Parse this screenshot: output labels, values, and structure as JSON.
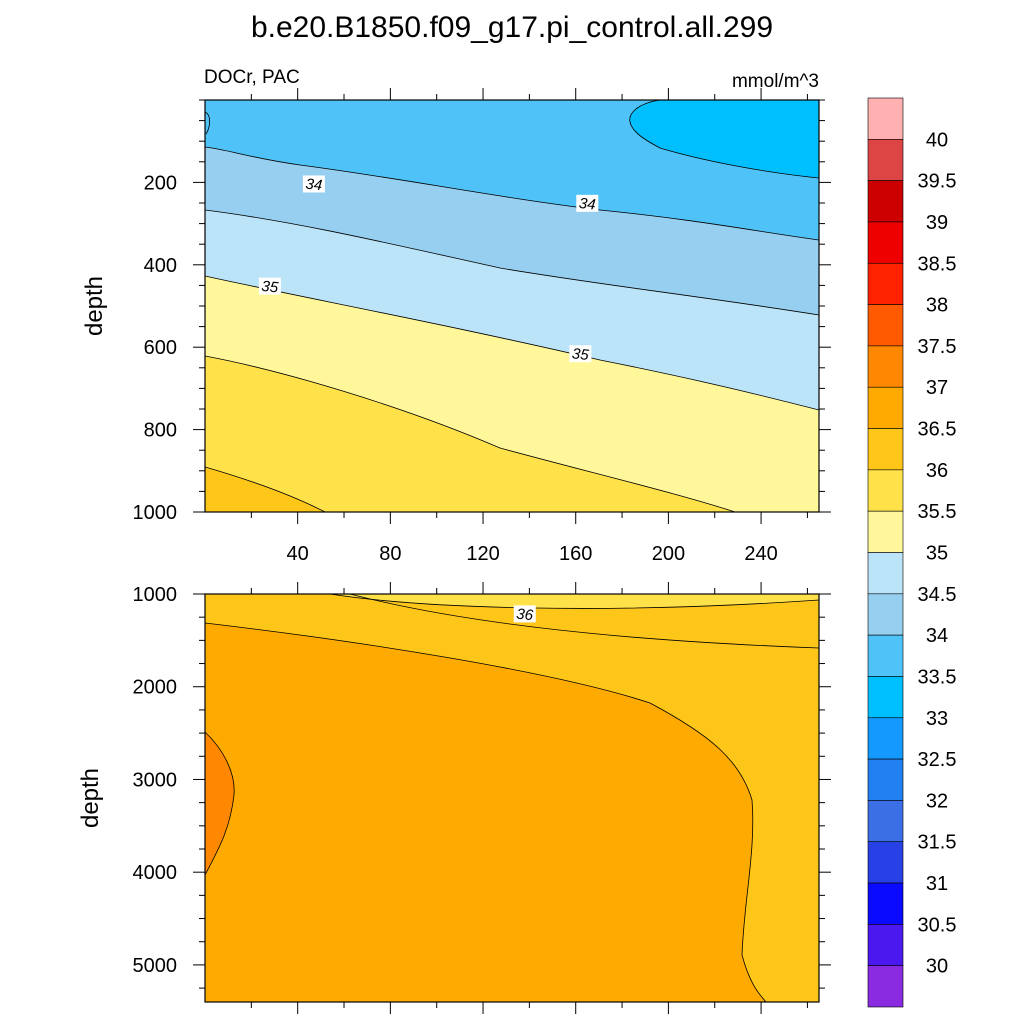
{
  "title": "b.e20.B1850.f09_g17.pi_control.all.299",
  "chart_data": {
    "type": "contour",
    "variable": "DOCr",
    "basin": "PAC",
    "left_label": "DOCr, PAC",
    "units": "mmol/m^3",
    "xlabel": "",
    "x_range": [
      0,
      265
    ],
    "x_ticks": [
      40,
      80,
      120,
      160,
      200,
      240
    ],
    "x_tick_labels": [
      "40",
      "80",
      "120",
      "160",
      "200",
      "240"
    ],
    "panels": [
      {
        "name": "upper",
        "ylabel": "depth",
        "ylim": [
          0,
          1000
        ],
        "y_reversed": true,
        "y_ticks": [
          200,
          400,
          600,
          800,
          1000
        ],
        "y_tick_labels": [
          "200",
          "400",
          "600",
          "800",
          "1000"
        ],
        "shows_x_tick_labels": true,
        "contour_labels": [
          {
            "text": "34",
            "x": 47,
            "y": 205
          },
          {
            "text": "34",
            "x": 165,
            "y": 252
          },
          {
            "text": "35",
            "x": 28,
            "y": 453
          },
          {
            "text": "35",
            "x": 162,
            "y": 617
          }
        ]
      },
      {
        "name": "lower",
        "ylabel": "depth",
        "ylim": [
          1000,
          5400
        ],
        "y_reversed": true,
        "y_ticks": [
          1000,
          2000,
          3000,
          4000,
          5000
        ],
        "y_tick_labels": [
          "1000",
          "2000",
          "3000",
          "4000",
          "5000"
        ],
        "shows_x_tick_labels": false,
        "contour_labels": [
          {
            "text": "36",
            "x": 138,
            "y": 1220
          }
        ]
      }
    ],
    "colorbar": {
      "levels": [
        "30",
        "30.5",
        "31",
        "31.5",
        "32",
        "32.5",
        "33",
        "33.5",
        "34",
        "34.5",
        "35",
        "35.5",
        "36",
        "36.5",
        "37",
        "37.5",
        "38",
        "38.5",
        "39",
        "39.5",
        "40"
      ],
      "colors": [
        "#8a2be2",
        "#4b19f0",
        "#0a0aff",
        "#2841e6",
        "#3a6fe6",
        "#2280f0",
        "#1499ff",
        "#00bfff",
        "#4fc3f7",
        "#96cff0",
        "#bce4f8",
        "#fff799",
        "#ffe14a",
        "#ffc61a",
        "#ffaa00",
        "#ff8800",
        "#ff5a00",
        "#ff2200",
        "#ee0000",
        "#cc0000",
        "#dd4444",
        "#ffb0b0"
      ]
    }
  }
}
